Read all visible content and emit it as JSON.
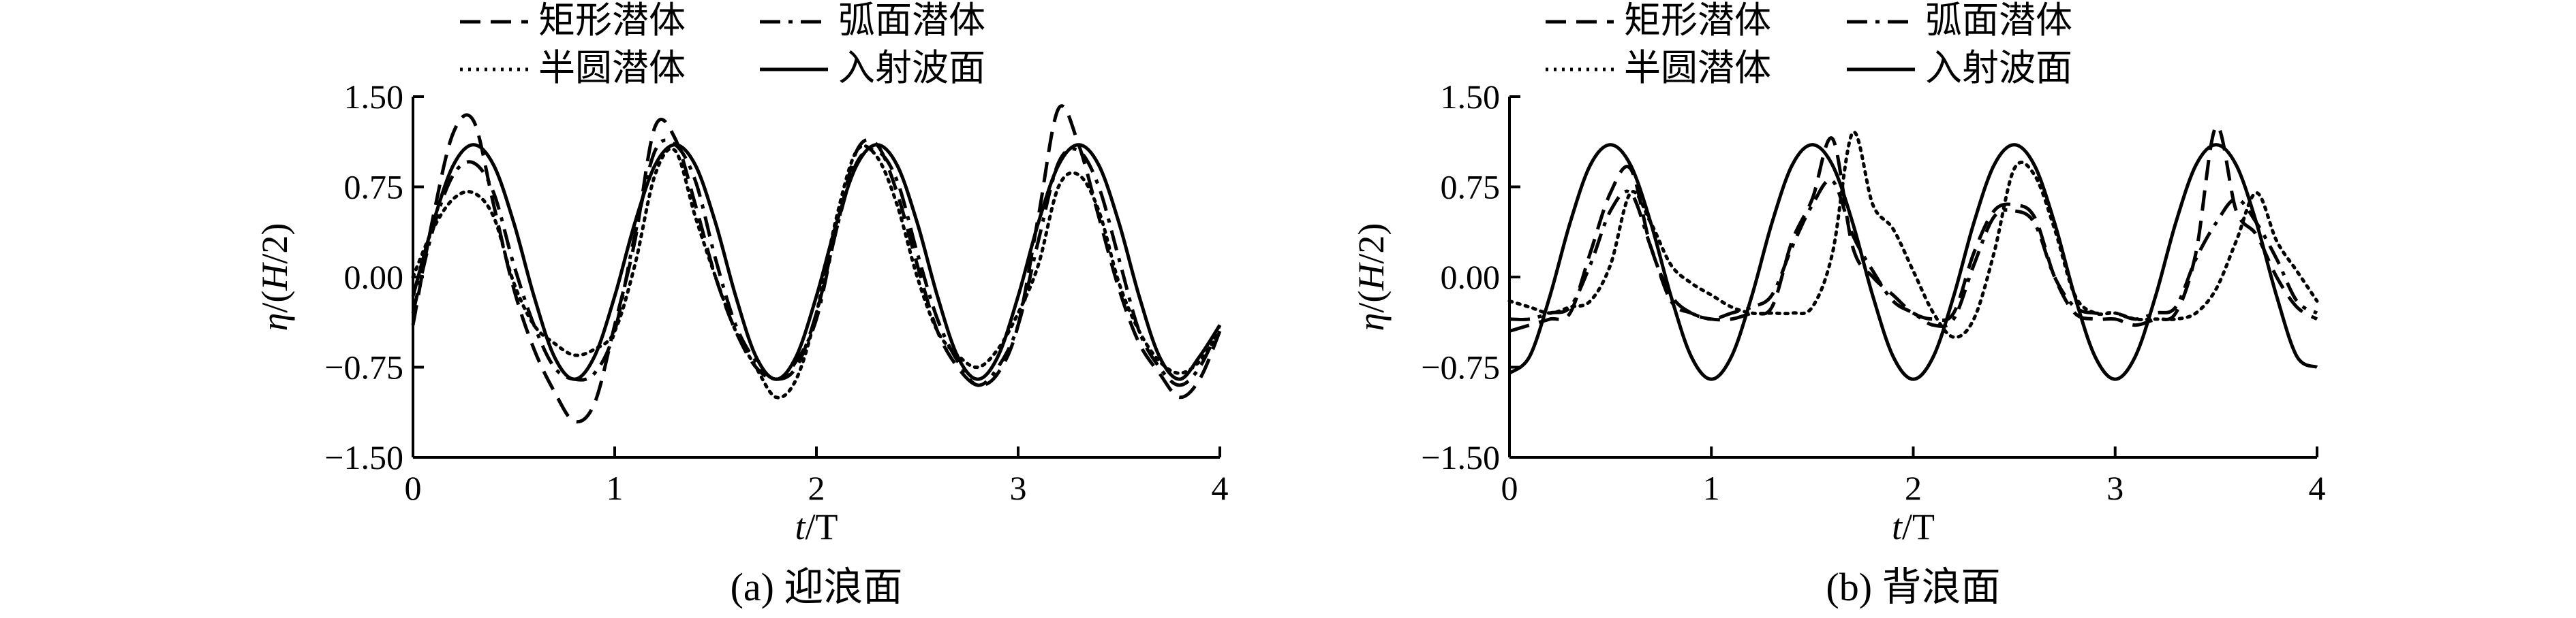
{
  "chart_data": [
    {
      "id": "a",
      "type": "line",
      "caption": "(a) 迎浪面",
      "xlabel_var": "t",
      "xlabel_unit": "/T",
      "ylabel_var1": "η",
      "ylabel_mid": "/(",
      "ylabel_var2": "H",
      "ylabel_end": "/2)",
      "xlim": [
        0,
        4
      ],
      "ylim": [
        -1.5,
        1.5
      ],
      "xticks": [
        0,
        1,
        2,
        3,
        4
      ],
      "yticks": [
        1.5,
        0.75,
        0.0,
        -0.75,
        -1.5
      ],
      "xtick_labels": [
        "0",
        "1",
        "2",
        "3",
        "4"
      ],
      "ytick_labels": [
        "1.50",
        "0.75",
        "0.00",
        "−0.75",
        "−1.50"
      ],
      "legend": {
        "position": "top",
        "entries": [
          "矩形潜体",
          "弧面潜体",
          "半圆潜体",
          "入射波面"
        ]
      },
      "series": [
        {
          "name": "矩形潜体",
          "style": "dashed",
          "color": "#000000",
          "x": [
            0,
            0.1,
            0.2,
            0.3,
            0.4,
            0.5,
            0.6,
            0.7,
            0.8,
            0.9,
            1.0,
            1.1,
            1.2,
            1.3,
            1.4,
            1.5,
            1.6,
            1.7,
            1.8,
            1.9,
            2.0,
            2.1,
            2.2,
            2.3,
            2.4,
            2.5,
            2.6,
            2.7,
            2.8,
            2.9,
            3.0,
            3.1,
            3.2,
            3.3,
            3.4,
            3.5,
            3.6,
            3.7,
            3.8,
            3.9,
            4.0
          ],
          "y": [
            -0.4,
            0.5,
            1.2,
            1.3,
            0.6,
            -0.1,
            -0.6,
            -0.95,
            -1.2,
            -1.05,
            -0.4,
            0.3,
            1.25,
            1.15,
            0.6,
            0.0,
            -0.45,
            -0.75,
            -0.85,
            -0.75,
            -0.3,
            0.4,
            1.05,
            1.1,
            0.7,
            0.1,
            -0.45,
            -0.75,
            -0.9,
            -0.8,
            -0.4,
            0.5,
            1.4,
            1.1,
            0.5,
            -0.1,
            -0.55,
            -0.8,
            -1.0,
            -0.85,
            -0.45
          ]
        },
        {
          "name": "弧面潜体",
          "style": "dash-dot",
          "color": "#000000",
          "x": [
            0,
            0.1,
            0.2,
            0.3,
            0.4,
            0.5,
            0.6,
            0.7,
            0.8,
            0.9,
            1.0,
            1.1,
            1.2,
            1.3,
            1.4,
            1.5,
            1.6,
            1.7,
            1.8,
            1.9,
            2.0,
            2.1,
            2.2,
            2.3,
            2.4,
            2.5,
            2.6,
            2.7,
            2.8,
            2.9,
            3.0,
            3.1,
            3.2,
            3.3,
            3.4,
            3.5,
            3.6,
            3.7,
            3.8,
            3.9,
            4.0
          ],
          "y": [
            -0.3,
            0.4,
            0.85,
            0.95,
            0.7,
            0.1,
            -0.4,
            -0.75,
            -0.85,
            -0.8,
            -0.45,
            0.35,
            1.05,
            1.1,
            0.8,
            0.15,
            -0.4,
            -0.7,
            -0.85,
            -0.7,
            -0.35,
            0.4,
            0.95,
            1.05,
            0.8,
            0.2,
            -0.35,
            -0.7,
            -0.9,
            -0.75,
            -0.4,
            0.3,
            0.95,
            1.05,
            0.75,
            0.15,
            -0.45,
            -0.75,
            -0.9,
            -0.75,
            -0.4
          ]
        },
        {
          "name": "半圆潜体",
          "style": "dotted",
          "color": "#000000",
          "x": [
            0,
            0.1,
            0.2,
            0.3,
            0.4,
            0.5,
            0.6,
            0.7,
            0.8,
            0.9,
            1.0,
            1.1,
            1.2,
            1.3,
            1.4,
            1.5,
            1.6,
            1.7,
            1.8,
            1.9,
            2.0,
            2.1,
            2.2,
            2.3,
            2.4,
            2.5,
            2.6,
            2.7,
            2.8,
            2.9,
            3.0,
            3.1,
            3.2,
            3.3,
            3.4,
            3.5,
            3.6,
            3.7,
            3.8,
            3.9,
            4.0
          ],
          "y": [
            0.0,
            0.4,
            0.65,
            0.7,
            0.5,
            -0.05,
            -0.4,
            -0.55,
            -0.65,
            -0.6,
            -0.45,
            0.1,
            0.85,
            1.05,
            0.5,
            0.0,
            -0.45,
            -0.75,
            -1.0,
            -0.85,
            -0.3,
            0.5,
            1.05,
            1.0,
            0.6,
            0.0,
            -0.45,
            -0.65,
            -0.75,
            -0.6,
            -0.3,
            0.1,
            0.75,
            0.85,
            0.55,
            -0.05,
            -0.45,
            -0.7,
            -0.8,
            -0.7,
            -0.45
          ]
        },
        {
          "name": "入射波面",
          "style": "solid",
          "color": "#000000",
          "x": [
            0,
            0.1,
            0.2,
            0.3,
            0.4,
            0.5,
            0.6,
            0.7,
            0.8,
            0.9,
            1.0,
            1.1,
            1.2,
            1.3,
            1.4,
            1.5,
            1.6,
            1.7,
            1.8,
            1.9,
            2.0,
            2.1,
            2.2,
            2.3,
            2.4,
            2.5,
            2.6,
            2.7,
            2.8,
            2.9,
            3.0,
            3.1,
            3.2,
            3.3,
            3.4,
            3.5,
            3.6,
            3.7,
            3.8,
            3.9,
            4.0
          ],
          "y": [
            -0.16,
            0.45,
            0.93,
            1.1,
            0.93,
            0.45,
            -0.16,
            -0.66,
            -0.85,
            -0.66,
            -0.16,
            0.45,
            0.93,
            1.1,
            0.93,
            0.45,
            -0.16,
            -0.66,
            -0.85,
            -0.66,
            -0.16,
            0.45,
            0.93,
            1.1,
            0.93,
            0.45,
            -0.16,
            -0.66,
            -0.85,
            -0.66,
            -0.16,
            0.45,
            0.93,
            1.1,
            0.93,
            0.45,
            -0.16,
            -0.66,
            -0.85,
            -0.66,
            -0.4
          ]
        }
      ]
    },
    {
      "id": "b",
      "type": "line",
      "caption": "(b) 背浪面",
      "xlabel_var": "t",
      "xlabel_unit": "/T",
      "ylabel_var1": "η",
      "ylabel_mid": "/(",
      "ylabel_var2": "H",
      "ylabel_end": "/2)",
      "xlim": [
        0,
        4
      ],
      "ylim": [
        -1.5,
        1.5
      ],
      "xticks": [
        0,
        1,
        2,
        3,
        4
      ],
      "yticks": [
        1.5,
        0.75,
        0.0,
        -0.75,
        -1.5
      ],
      "xtick_labels": [
        "0",
        "1",
        "2",
        "3",
        "4"
      ],
      "ytick_labels": [
        "1.50",
        "0.75",
        "0.00",
        "−0.75",
        "−1.50"
      ],
      "legend": {
        "position": "top",
        "entries": [
          "矩形潜体",
          "弧面潜体",
          "半圆潜体",
          "入射波面"
        ]
      },
      "series": [
        {
          "name": "矩形潜体",
          "style": "dashed",
          "color": "#000000",
          "x": [
            0,
            0.1,
            0.2,
            0.3,
            0.4,
            0.5,
            0.6,
            0.7,
            0.8,
            0.9,
            1.0,
            1.1,
            1.2,
            1.3,
            1.4,
            1.5,
            1.6,
            1.7,
            1.8,
            1.9,
            2.0,
            2.1,
            2.2,
            2.3,
            2.4,
            2.5,
            2.6,
            2.7,
            2.8,
            2.9,
            3.0,
            3.1,
            3.2,
            3.3,
            3.4,
            3.5,
            3.6,
            3.7,
            3.8,
            3.9,
            4.0
          ],
          "y": [
            -0.45,
            -0.4,
            -0.35,
            -0.3,
            0.2,
            0.7,
            0.9,
            0.25,
            -0.15,
            -0.3,
            -0.35,
            -0.35,
            -0.3,
            -0.25,
            0.3,
            0.65,
            1.15,
            0.25,
            0.0,
            -0.15,
            -0.3,
            -0.35,
            -0.3,
            0.2,
            0.55,
            0.6,
            0.5,
            0.0,
            -0.3,
            -0.35,
            -0.35,
            -0.4,
            -0.35,
            -0.3,
            0.2,
            1.25,
            0.55,
            0.35,
            0.0,
            -0.25,
            -0.35
          ]
        },
        {
          "name": "弧面潜体",
          "style": "dash-dot",
          "color": "#000000",
          "x": [
            0,
            0.1,
            0.2,
            0.3,
            0.4,
            0.5,
            0.6,
            0.7,
            0.8,
            0.9,
            1.0,
            1.1,
            1.2,
            1.3,
            1.4,
            1.5,
            1.6,
            1.7,
            1.8,
            1.9,
            2.0,
            2.1,
            2.2,
            2.3,
            2.4,
            2.5,
            2.6,
            2.7,
            2.8,
            2.9,
            3.0,
            3.1,
            3.2,
            3.3,
            3.4,
            3.5,
            3.6,
            3.7,
            3.8,
            3.9,
            4.0
          ],
          "y": [
            -0.35,
            -0.35,
            -0.3,
            -0.25,
            0.1,
            0.55,
            0.7,
            0.25,
            -0.2,
            -0.3,
            -0.35,
            -0.3,
            -0.25,
            -0.15,
            0.25,
            0.6,
            0.8,
            0.35,
            0.05,
            -0.2,
            -0.3,
            -0.4,
            -0.35,
            0.1,
            0.5,
            0.55,
            0.45,
            0.0,
            -0.25,
            -0.3,
            -0.3,
            -0.35,
            -0.3,
            -0.25,
            0.15,
            0.45,
            0.65,
            0.45,
            0.15,
            -0.2,
            -0.3
          ]
        },
        {
          "name": "半圆潜体",
          "style": "dotted",
          "color": "#000000",
          "x": [
            0,
            0.1,
            0.2,
            0.3,
            0.4,
            0.5,
            0.6,
            0.7,
            0.8,
            0.9,
            1.0,
            1.1,
            1.2,
            1.3,
            1.4,
            1.5,
            1.6,
            1.7,
            1.8,
            1.9,
            2.0,
            2.1,
            2.2,
            2.3,
            2.4,
            2.5,
            2.6,
            2.7,
            2.8,
            2.9,
            3.0,
            3.1,
            3.2,
            3.3,
            3.4,
            3.5,
            3.6,
            3.7,
            3.8,
            3.9,
            4.0
          ],
          "y": [
            -0.2,
            -0.25,
            -0.3,
            -0.25,
            -0.2,
            0.1,
            0.7,
            0.45,
            0.1,
            -0.05,
            -0.15,
            -0.25,
            -0.3,
            -0.3,
            -0.3,
            -0.25,
            0.2,
            1.2,
            0.6,
            0.4,
            0.05,
            -0.3,
            -0.5,
            -0.35,
            0.2,
            0.9,
            0.85,
            0.4,
            -0.15,
            -0.3,
            -0.3,
            -0.35,
            -0.35,
            -0.35,
            -0.3,
            -0.1,
            0.3,
            0.7,
            0.3,
            0.05,
            -0.2
          ]
        },
        {
          "name": "入射波面",
          "style": "solid",
          "color": "#000000",
          "x": [
            0,
            0.1,
            0.2,
            0.3,
            0.4,
            0.5,
            0.6,
            0.7,
            0.8,
            0.9,
            1.0,
            1.1,
            1.2,
            1.3,
            1.4,
            1.5,
            1.6,
            1.7,
            1.8,
            1.9,
            2.0,
            2.1,
            2.2,
            2.3,
            2.4,
            2.5,
            2.6,
            2.7,
            2.8,
            2.9,
            3.0,
            3.1,
            3.2,
            3.3,
            3.4,
            3.5,
            3.6,
            3.7,
            3.8,
            3.9,
            4.0
          ],
          "y": [
            -0.8,
            -0.66,
            -0.16,
            0.45,
            0.93,
            1.1,
            0.93,
            0.45,
            -0.16,
            -0.66,
            -0.85,
            -0.66,
            -0.16,
            0.45,
            0.93,
            1.1,
            0.93,
            0.45,
            -0.16,
            -0.66,
            -0.85,
            -0.66,
            -0.16,
            0.45,
            0.93,
            1.1,
            0.93,
            0.45,
            -0.16,
            -0.66,
            -0.85,
            -0.66,
            -0.16,
            0.45,
            0.93,
            1.1,
            0.93,
            0.45,
            -0.16,
            -0.66,
            -0.75
          ]
        }
      ]
    }
  ]
}
